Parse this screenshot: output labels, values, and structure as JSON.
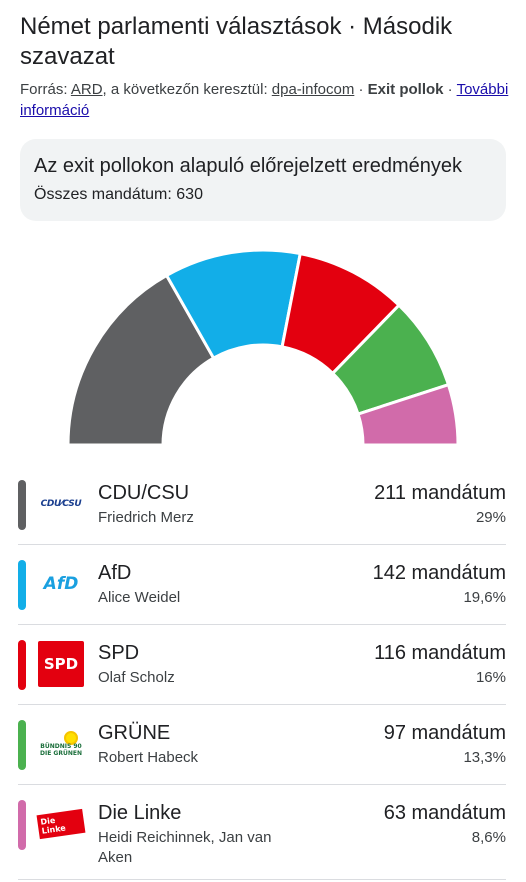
{
  "header": {
    "title": "Német parlamenti választások · Második szavazat",
    "source_prefix": "Forrás: ",
    "source_link": "ARD",
    "source_mid": ", a következőn keresztül: ",
    "source_link2": "dpa-infocom",
    "source_sep": " · ",
    "source_bold": "Exit pollok",
    "source_sep2": " · ",
    "more_info": "További információ"
  },
  "info": {
    "heading": "Az exit pollokon alapuló előrejelzett eredmények",
    "total": "Összes mandátum: 630"
  },
  "chart_data": {
    "type": "pie",
    "subtype": "semicircle",
    "total_seats": 630,
    "categories": [
      "CDU/CSU",
      "AfD",
      "SPD",
      "GRÜNE",
      "Die Linke"
    ],
    "values": [
      211,
      142,
      116,
      97,
      63
    ],
    "colors": [
      "#5f6062",
      "#12aee8",
      "#e3000f",
      "#4bb14f",
      "#d16baa"
    ]
  },
  "parties": [
    {
      "name": "CDU/CSU",
      "leader": "Friedrich Merz",
      "seats": "211 mandátum",
      "pct": "29%",
      "color": "#5f6062",
      "logo": "cdu-csu-logo",
      "logo_text": "CDU⁄CSU"
    },
    {
      "name": "AfD",
      "leader": "Alice Weidel",
      "seats": "142 mandátum",
      "pct": "19,6%",
      "color": "#12aee8",
      "logo": "afd-logo",
      "logo_text": "AfD"
    },
    {
      "name": "SPD",
      "leader": "Olaf Scholz",
      "seats": "116 mandátum",
      "pct": "16%",
      "color": "#e3000f",
      "logo": "spd-logo",
      "logo_text": "SPD"
    },
    {
      "name": "GRÜNE",
      "leader": "Robert Habeck",
      "seats": "97 mandátum",
      "pct": "13,3%",
      "color": "#4bb14f",
      "logo": "grune-logo",
      "logo_text": "BÜNDNIS 90 DIE GRÜNEN"
    },
    {
      "name": "Die Linke",
      "leader": "Heidi Reichinnek, Jan van Aken",
      "seats": "63 mandátum",
      "pct": "8,6%",
      "color": "#d16baa",
      "logo": "die-linke-logo",
      "logo_text": "Die Linke"
    }
  ]
}
